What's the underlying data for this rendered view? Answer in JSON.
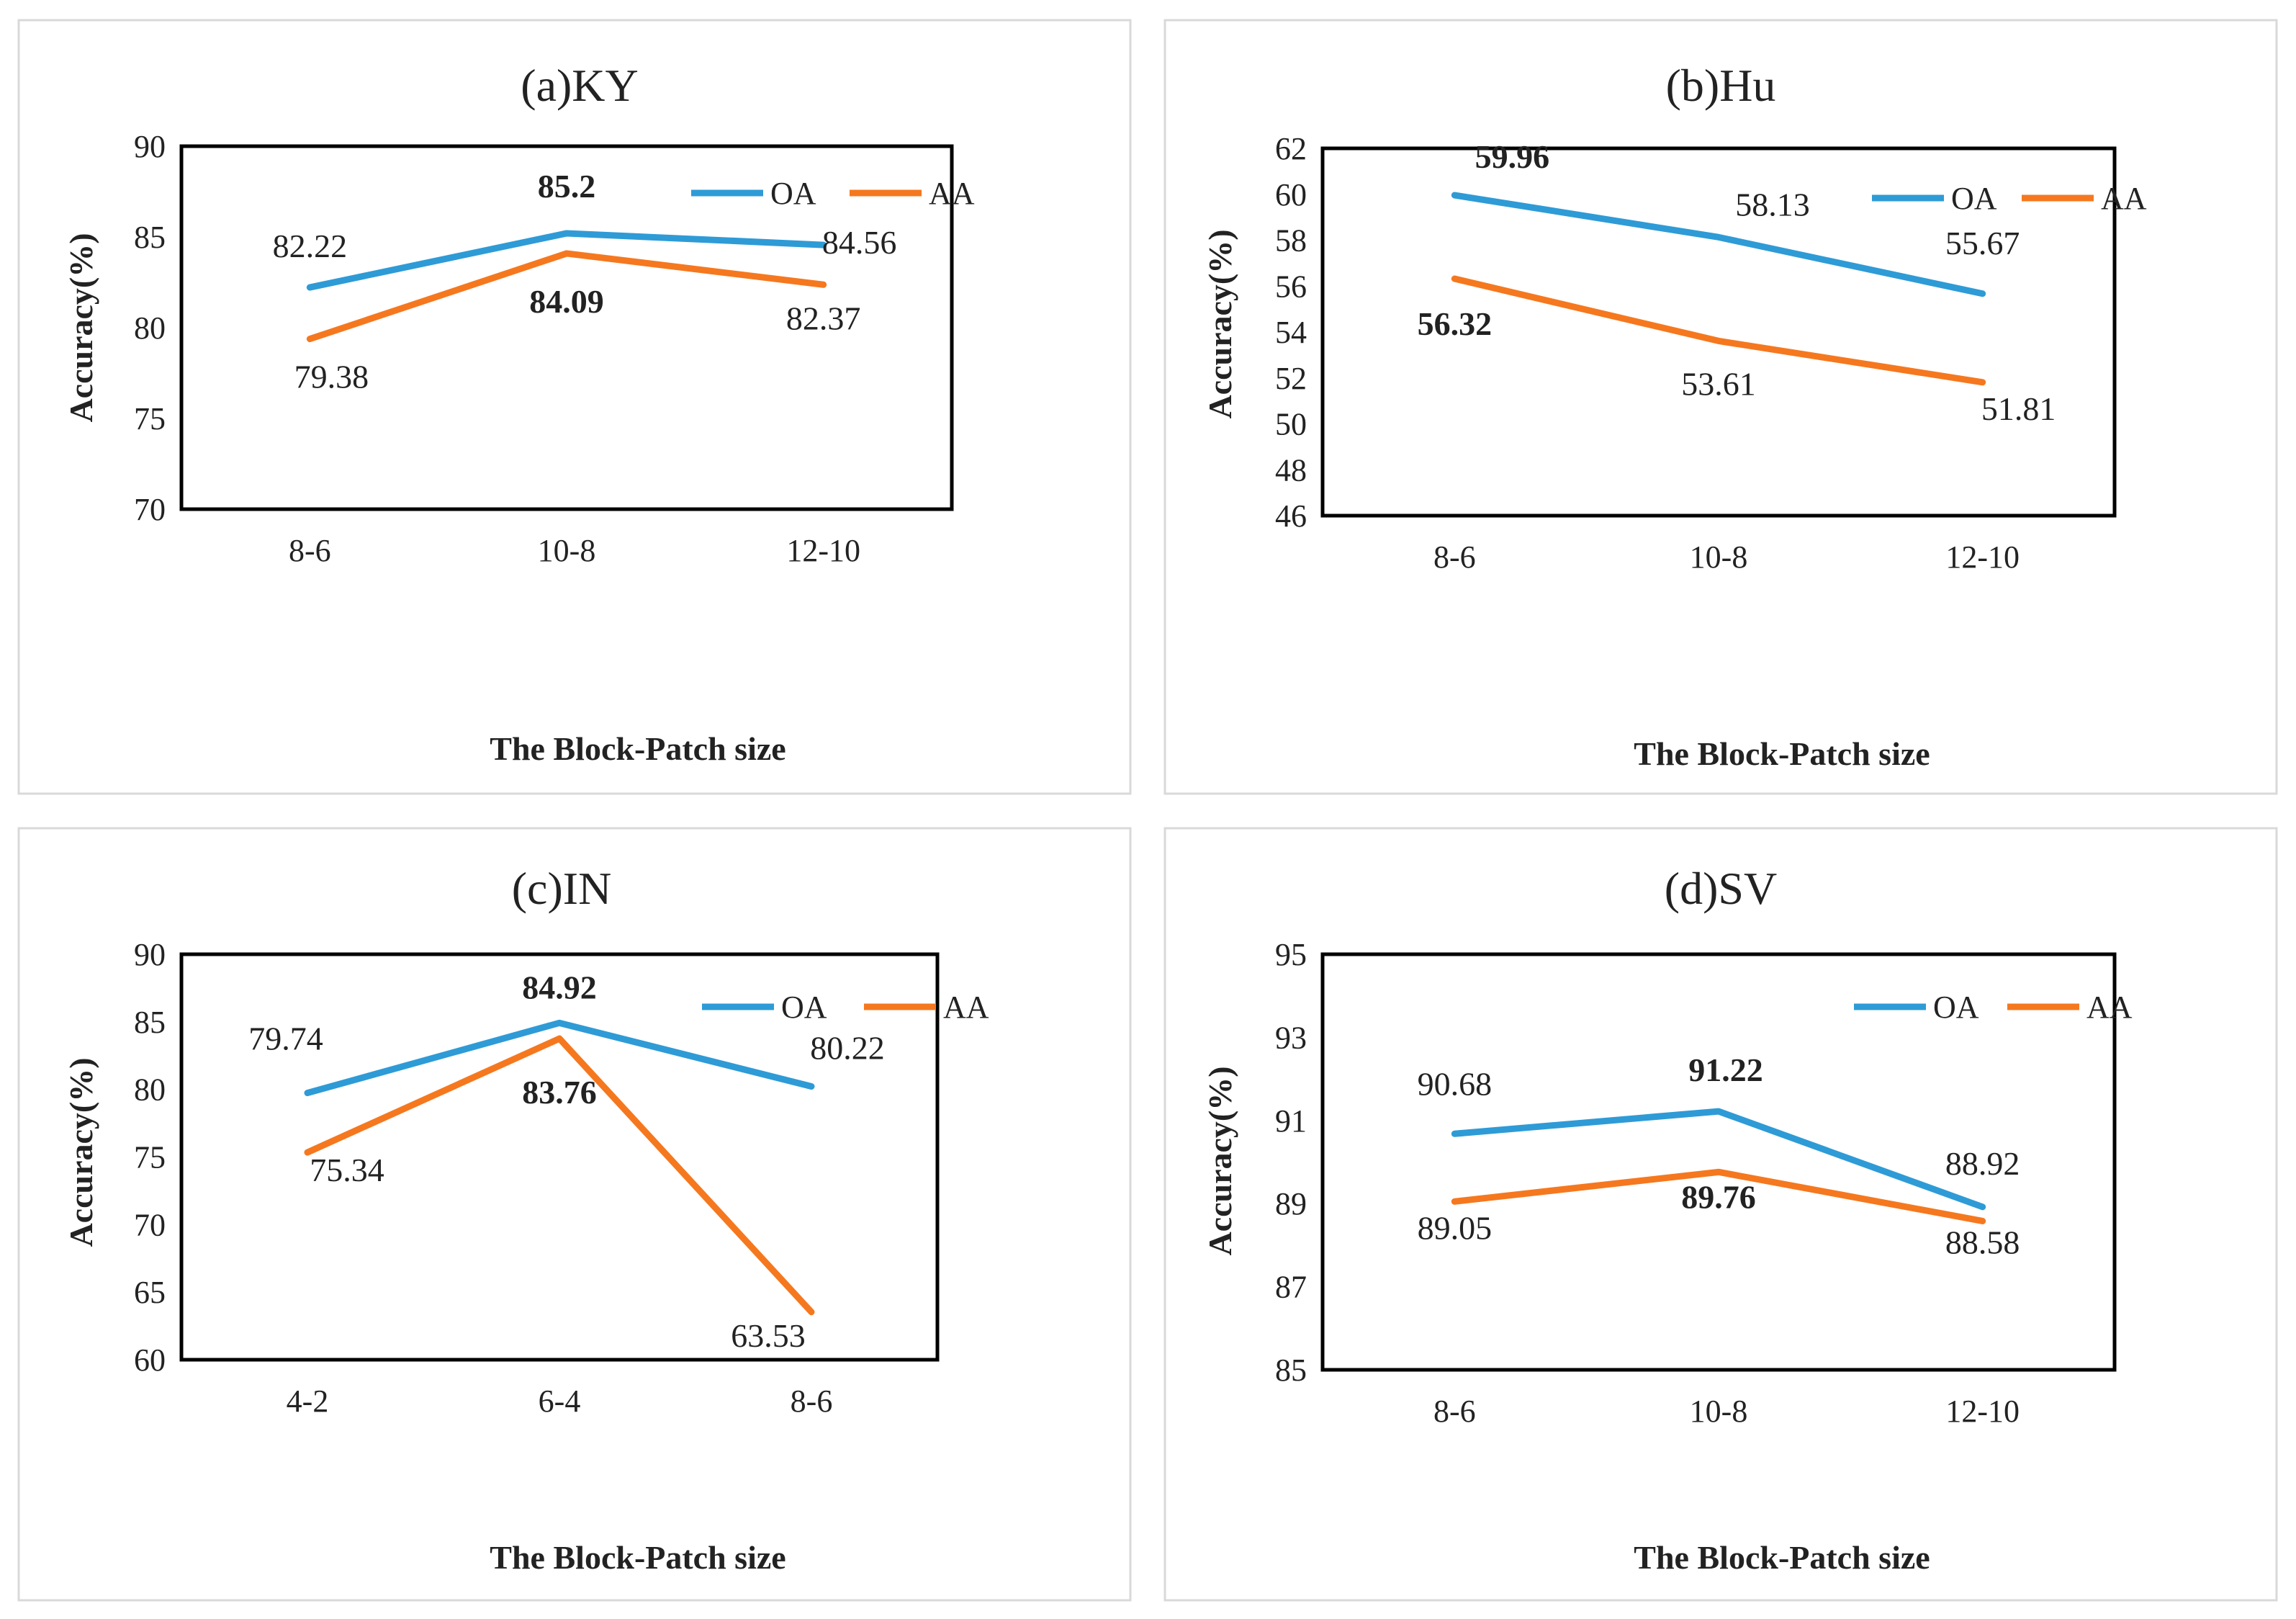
{
  "chart_data": [
    {
      "type": "line",
      "title": "(a)KY",
      "xlabel": "The Block-Patch size",
      "ylabel": "Accuracy(%)",
      "categories": [
        "8-6",
        "10-8",
        "12-10"
      ],
      "ylim": [
        70,
        90
      ],
      "yticks": [
        70,
        75,
        80,
        85,
        90
      ],
      "grid": false,
      "legend": "top-right",
      "series": [
        {
          "name": "OA",
          "color": "#2E9BD6",
          "values": [
            82.22,
            85.2,
            84.56
          ],
          "labels": [
            "82.22",
            "85.2",
            "84.56"
          ],
          "bold": [
            false,
            true,
            false
          ]
        },
        {
          "name": "AA",
          "color": "#F5781F",
          "values": [
            79.38,
            84.09,
            82.37
          ],
          "labels": [
            "79.38",
            "84.09",
            "82.37"
          ],
          "bold": [
            false,
            true,
            false
          ]
        }
      ]
    },
    {
      "type": "line",
      "title": "(b)Hu",
      "xlabel": "The Block-Patch size",
      "ylabel": "Accuracy(%)",
      "categories": [
        "8-6",
        "10-8",
        "12-10"
      ],
      "ylim": [
        46,
        62
      ],
      "yticks": [
        46,
        48,
        50,
        52,
        54,
        56,
        58,
        60,
        62
      ],
      "grid": false,
      "legend": "top-right",
      "series": [
        {
          "name": "OA",
          "color": "#2E9BD6",
          "values": [
            59.96,
            58.13,
            55.67
          ],
          "labels": [
            "59.96",
            "58.13",
            "55.67"
          ],
          "bold": [
            true,
            false,
            false
          ]
        },
        {
          "name": "AA",
          "color": "#F5781F",
          "values": [
            56.32,
            53.61,
            51.81
          ],
          "labels": [
            "56.32",
            "53.61",
            "51.81"
          ],
          "bold": [
            true,
            false,
            false
          ]
        }
      ]
    },
    {
      "type": "line",
      "title": "(c)IN",
      "xlabel": "The Block-Patch size",
      "ylabel": "Accuracy(%)",
      "categories": [
        "4-2",
        "6-4",
        "8-6"
      ],
      "ylim": [
        60,
        90
      ],
      "yticks": [
        60,
        65,
        70,
        75,
        80,
        85,
        90
      ],
      "grid": false,
      "legend": "top-right",
      "series": [
        {
          "name": "OA",
          "color": "#2E9BD6",
          "values": [
            79.74,
            84.92,
            80.22
          ],
          "labels": [
            "79.74",
            "84.92",
            "80.22"
          ],
          "bold": [
            false,
            true,
            false
          ]
        },
        {
          "name": "AA",
          "color": "#F5781F",
          "values": [
            75.34,
            83.76,
            63.53
          ],
          "labels": [
            "75.34",
            "83.76",
            "63.53"
          ],
          "bold": [
            false,
            true,
            false
          ]
        }
      ]
    },
    {
      "type": "line",
      "title": "(d)SV",
      "xlabel": "The Block-Patch size",
      "ylabel": "Accuracy(%)",
      "categories": [
        "8-6",
        "10-8",
        "12-10"
      ],
      "ylim": [
        85,
        95
      ],
      "yticks": [
        85,
        87,
        89,
        91,
        93,
        95
      ],
      "grid": false,
      "legend": "top-right",
      "series": [
        {
          "name": "OA",
          "color": "#2E9BD6",
          "values": [
            90.68,
            91.22,
            88.92
          ],
          "labels": [
            "90.68",
            "91.22",
            "88.92"
          ],
          "bold": [
            false,
            true,
            false
          ]
        },
        {
          "name": "AA",
          "color": "#F5781F",
          "values": [
            89.05,
            89.76,
            88.58
          ],
          "labels": [
            "89.05",
            "89.76",
            "88.58"
          ],
          "bold": [
            false,
            true,
            false
          ]
        }
      ]
    }
  ]
}
